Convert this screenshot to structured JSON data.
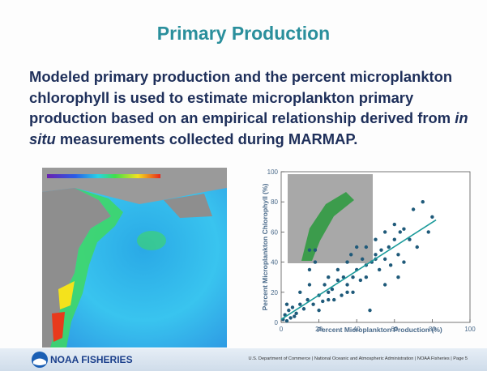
{
  "slide": {
    "title": "Primary Production",
    "body": [
      "Modeled primary production and the percent microplankton chlorophyll is used to estimate microplankton primary production based on an empirical relationship derived from",
      "in situ",
      "measurements collected during MARMAP."
    ]
  },
  "scatter": {
    "type": "scatter",
    "x_label": "Percent Microplankton Production (%)",
    "y_label": "Percent Microplankton Chlorophyll (%)",
    "xlim": [
      0,
      100
    ],
    "ylim": [
      0,
      100
    ],
    "xticks": [
      0,
      20,
      40,
      60,
      80,
      100
    ],
    "yticks": [
      0,
      20,
      40,
      60,
      80,
      100
    ],
    "color": "#1f5a7a",
    "fit_color": "#1a9a9a",
    "x": [
      1,
      2,
      3,
      4,
      5,
      6,
      8,
      10,
      12,
      14,
      15,
      15,
      17,
      18,
      20,
      22,
      23,
      25,
      25,
      27,
      28,
      30,
      30,
      32,
      33,
      35,
      35,
      37,
      38,
      40,
      40,
      42,
      43,
      45,
      45,
      47,
      48,
      50,
      50,
      52,
      53,
      55,
      55,
      57,
      58,
      60,
      60,
      62,
      63,
      65,
      65,
      68,
      70,
      72,
      75,
      78,
      80,
      3,
      7,
      10,
      15,
      20,
      25,
      35,
      45,
      55,
      18,
      38,
      50,
      62
    ],
    "y": [
      2,
      5,
      1,
      8,
      3,
      10,
      6,
      12,
      9,
      15,
      25,
      48,
      12,
      48,
      18,
      14,
      25,
      20,
      30,
      22,
      15,
      28,
      35,
      18,
      30,
      40,
      25,
      45,
      30,
      35,
      50,
      28,
      42,
      38,
      50,
      8,
      40,
      45,
      55,
      35,
      48,
      42,
      60,
      50,
      38,
      55,
      65,
      45,
      60,
      40,
      62,
      55,
      75,
      50,
      80,
      60,
      70,
      12,
      4,
      20,
      35,
      8,
      15,
      20,
      30,
      25,
      40,
      20,
      42,
      30
    ],
    "fit": {
      "x": [
        0,
        82
      ],
      "y": [
        2,
        68
      ]
    }
  },
  "footer": {
    "logo_text": "NOAA FISHERIES",
    "text": "U.S. Department of Commerce | National Oceanic and Atmospheric Administration | NOAA Fisheries | Page 5"
  }
}
